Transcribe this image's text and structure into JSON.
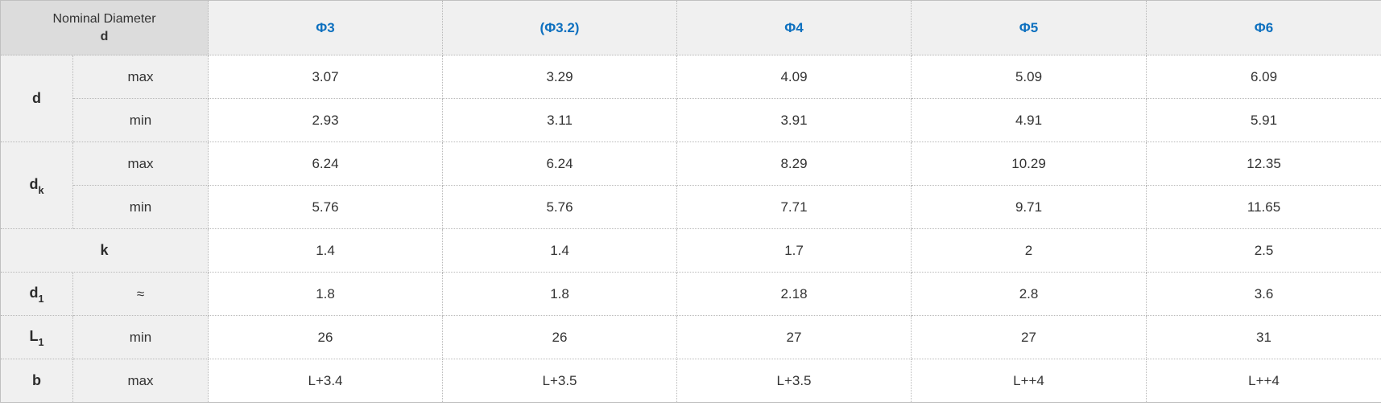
{
  "table": {
    "corner": {
      "line1": "Nominal Diameter",
      "line2": "d"
    },
    "columns": [
      "Φ3",
      "(Φ3.2)",
      "Φ4",
      "Φ5",
      "Φ6"
    ],
    "row_groups": [
      {
        "label": {
          "base": "d",
          "sub": ""
        },
        "rows": [
          {
            "qualifier": "max",
            "values": [
              "3.07",
              "3.29",
              "4.09",
              "5.09",
              "6.09"
            ]
          },
          {
            "qualifier": "min",
            "values": [
              "2.93",
              "3.11",
              "3.91",
              "4.91",
              "5.91"
            ]
          }
        ]
      },
      {
        "label": {
          "base": "d",
          "sub": "k"
        },
        "rows": [
          {
            "qualifier": "max",
            "values": [
              "6.24",
              "6.24",
              "8.29",
              "10.29",
              "12.35"
            ]
          },
          {
            "qualifier": "min",
            "values": [
              "5.76",
              "5.76",
              "7.71",
              "9.71",
              "11.65"
            ]
          }
        ]
      },
      {
        "label": {
          "base": "k",
          "sub": ""
        },
        "label_colspan": 2,
        "rows": [
          {
            "qualifier": null,
            "values": [
              "1.4",
              "1.4",
              "1.7",
              "2",
              "2.5"
            ]
          }
        ]
      },
      {
        "label": {
          "base": "d",
          "sub": "1"
        },
        "rows": [
          {
            "qualifier": "≈",
            "values": [
              "1.8",
              "1.8",
              "2.18",
              "2.8",
              "3.6"
            ]
          }
        ]
      },
      {
        "label": {
          "base": "L",
          "sub": "1"
        },
        "rows": [
          {
            "qualifier": "min",
            "values": [
              "26",
              "26",
              "27",
              "27",
              "31"
            ]
          }
        ]
      },
      {
        "label": {
          "base": "b",
          "sub": ""
        },
        "rows": [
          {
            "qualifier": "max",
            "values": [
              "L+3.4",
              "L+3.5",
              "L+3.5",
              "L++4",
              "L++4"
            ]
          }
        ]
      }
    ],
    "colors": {
      "header_text": "#0d70bf",
      "corner_bg": "#dcdcdc",
      "head_bg": "#f0f0f0",
      "label_bg": "#f0f0f0",
      "body_bg": "#ffffff",
      "border": "#b9b9b9",
      "outer_border": "#c0c0c0",
      "text": "#333333"
    }
  }
}
